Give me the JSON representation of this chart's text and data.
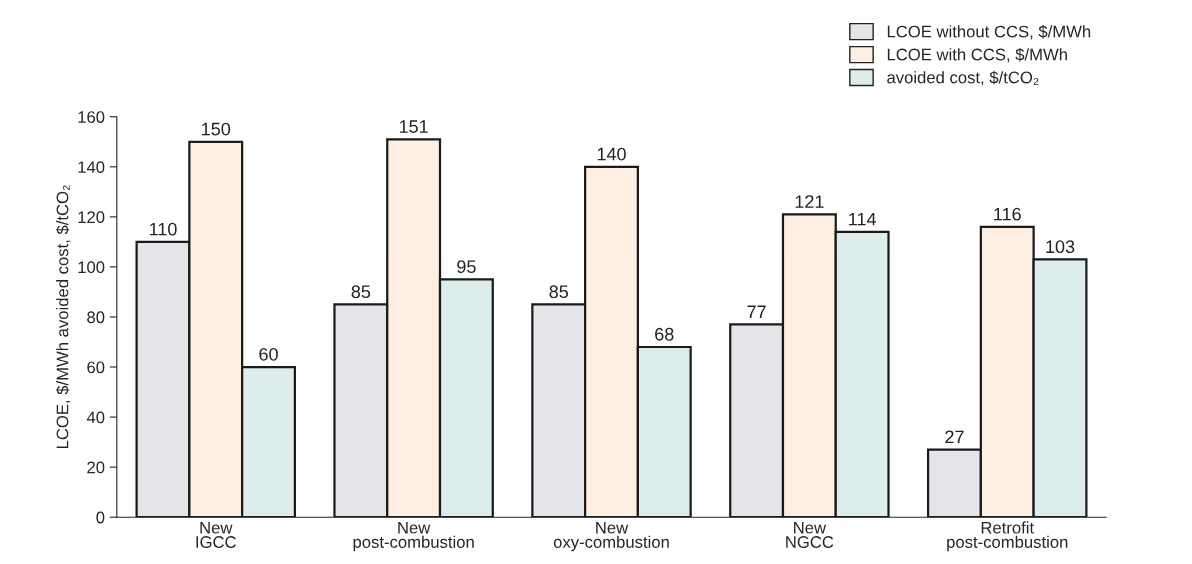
{
  "chart_data": {
    "type": "bar",
    "categories": [
      "New\nIGCC",
      "New\npost-combustion",
      "New\noxy-combustion",
      "New\nNGCC",
      "Retrofit\npost-combustion"
    ],
    "series": [
      {
        "name": "LCOE without CCS, $/MWh",
        "color": "#e4e5e8",
        "values": [
          110,
          85,
          85,
          77,
          27
        ]
      },
      {
        "name": "LCOE with CCS, $/MWh",
        "color": "#fdefe2",
        "values": [
          150,
          151,
          140,
          121,
          116
        ]
      },
      {
        "name": "avoided cost, $/tCO₂",
        "color": "#dcedec",
        "values": [
          60,
          95,
          68,
          114,
          103
        ]
      }
    ],
    "ylabel": "LCOE, $/MWh avoided cost, $/tCO₂",
    "ylim": [
      0,
      160
    ],
    "yticks": [
      0,
      20,
      40,
      60,
      80,
      100,
      120,
      140,
      160
    ],
    "data_labels": true,
    "grid": false,
    "legend": "top right"
  }
}
